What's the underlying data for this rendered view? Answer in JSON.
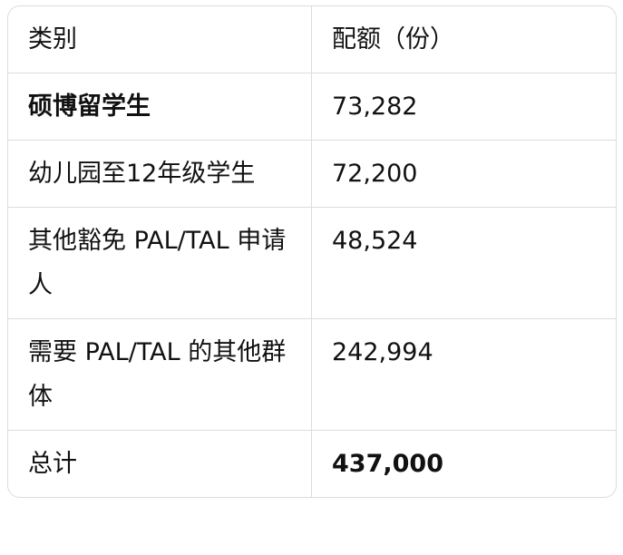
{
  "table": {
    "headers": [
      "类别",
      "配额（份）"
    ],
    "rows": [
      {
        "category": "硕博留学生",
        "quota": "73,282"
      },
      {
        "category": "幼儿园至12年级学生",
        "quota": "72,200"
      },
      {
        "category": "其他豁免 PAL/TAL 申请人",
        "quota": "48,524"
      },
      {
        "category": "需要 PAL/TAL 的其他群体",
        "quota": "242,994"
      },
      {
        "category": "总计",
        "quota": "437,000"
      }
    ]
  }
}
